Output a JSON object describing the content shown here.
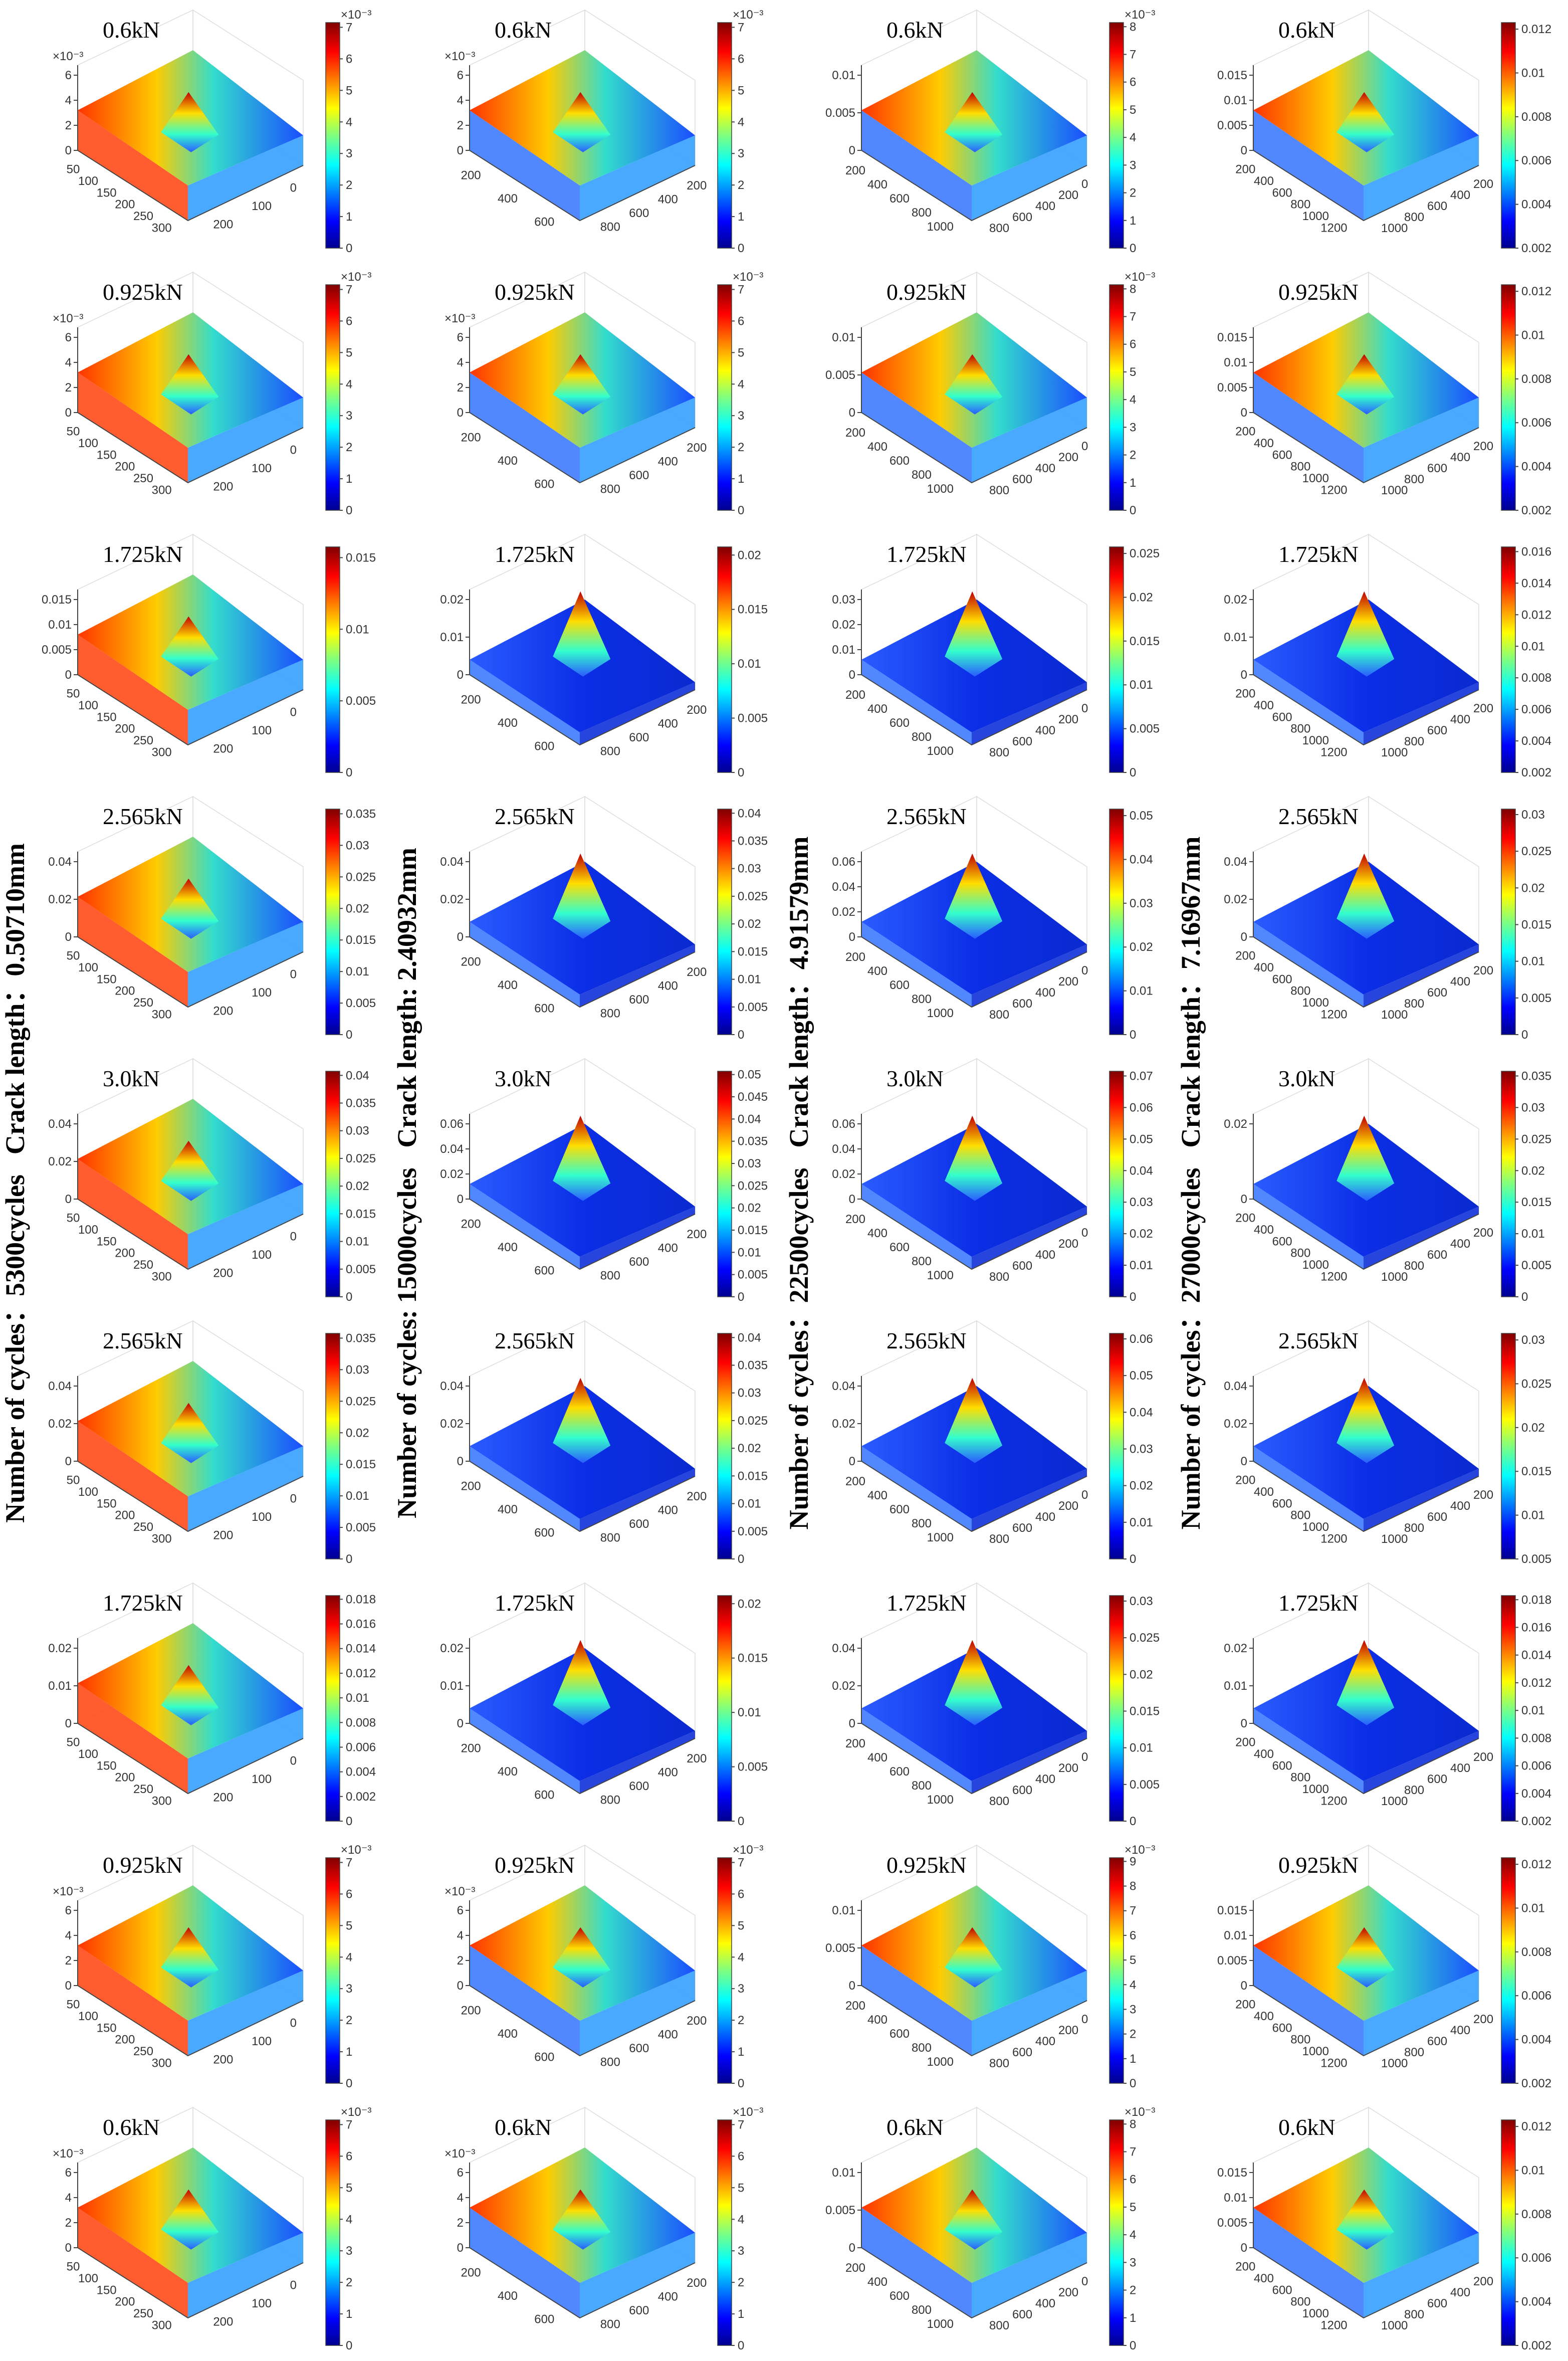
{
  "columns": [
    {
      "cycles": "Number of cycles：5300cycles",
      "crack": "Crack length：0.50710mm",
      "x_ticks": [
        "50",
        "100",
        "150",
        "200",
        "250",
        "300"
      ],
      "y_ticks": [
        "0",
        "100",
        "200"
      ],
      "panels": [
        {
          "title": "0.6kN",
          "z_ticks": [
            "0",
            "2",
            "4",
            "6"
          ],
          "z_exp": "×10⁻³",
          "cbar_ticks": [
            "0",
            "1",
            "2",
            "3",
            "4",
            "5",
            "6",
            "7"
          ],
          "cbar_exp": "×10⁻³"
        },
        {
          "title": "0.925kN",
          "z_ticks": [
            "0",
            "2",
            "4",
            "6"
          ],
          "z_exp": "×10⁻³",
          "cbar_ticks": [
            "0",
            "1",
            "2",
            "3",
            "4",
            "5",
            "6",
            "7"
          ],
          "cbar_exp": "×10⁻³"
        },
        {
          "title": "1.725kN",
          "z_ticks": [
            "0",
            "0.005",
            "0.01",
            "0.015"
          ],
          "cbar_ticks": [
            "0",
            "0.005",
            "0.01",
            "0.015"
          ]
        },
        {
          "title": "2.565kN",
          "z_ticks": [
            "0",
            "0.02",
            "0.04"
          ],
          "cbar_ticks": [
            "0",
            "0.005",
            "0.01",
            "0.015",
            "0.02",
            "0.025",
            "0.03",
            "0.035"
          ]
        },
        {
          "title": "3.0kN",
          "z_ticks": [
            "0",
            "0.02",
            "0.04"
          ],
          "cbar_ticks": [
            "0",
            "0.005",
            "0.01",
            "0.015",
            "0.02",
            "0.025",
            "0.03",
            "0.035",
            "0.04"
          ]
        },
        {
          "title": "2.565kN",
          "z_ticks": [
            "0",
            "0.02",
            "0.04"
          ],
          "cbar_ticks": [
            "0",
            "0.005",
            "0.01",
            "0.015",
            "0.02",
            "0.025",
            "0.03",
            "0.035"
          ]
        },
        {
          "title": "1.725kN",
          "z_ticks": [
            "0",
            "0.01",
            "0.02"
          ],
          "cbar_ticks": [
            "0",
            "0.002",
            "0.004",
            "0.006",
            "0.008",
            "0.01",
            "0.012",
            "0.014",
            "0.016",
            "0.018"
          ]
        },
        {
          "title": "0.925kN",
          "z_ticks": [
            "0",
            "2",
            "4",
            "6"
          ],
          "z_exp": "×10⁻³",
          "cbar_ticks": [
            "0",
            "1",
            "2",
            "3",
            "4",
            "5",
            "6",
            "7"
          ],
          "cbar_exp": "×10⁻³"
        },
        {
          "title": "0.6kN",
          "z_ticks": [
            "0",
            "2",
            "4",
            "6"
          ],
          "z_exp": "×10⁻³",
          "cbar_ticks": [
            "0",
            "1",
            "2",
            "3",
            "4",
            "5",
            "6",
            "7"
          ],
          "cbar_exp": "×10⁻³"
        }
      ]
    },
    {
      "cycles": "Number of cycles: 15000cycles",
      "crack": "Crack length: 2.40932mm",
      "x_ticks": [
        "200",
        "400",
        "600"
      ],
      "y_ticks": [
        "200",
        "400",
        "600",
        "800"
      ],
      "panels": [
        {
          "title": "0.6kN",
          "z_ticks": [
            "0",
            "2",
            "4",
            "6"
          ],
          "z_exp": "×10⁻³",
          "cbar_ticks": [
            "0",
            "1",
            "2",
            "3",
            "4",
            "5",
            "6",
            "7"
          ],
          "cbar_exp": "×10⁻³"
        },
        {
          "title": "0.925kN",
          "z_ticks": [
            "0",
            "2",
            "4",
            "6"
          ],
          "z_exp": "×10⁻³",
          "cbar_ticks": [
            "0",
            "1",
            "2",
            "3",
            "4",
            "5",
            "6",
            "7"
          ],
          "cbar_exp": "×10⁻³"
        },
        {
          "title": "1.725kN",
          "z_ticks": [
            "0",
            "0.01",
            "0.02"
          ],
          "cbar_ticks": [
            "0",
            "0.005",
            "0.01",
            "0.015",
            "0.02"
          ]
        },
        {
          "title": "2.565kN",
          "z_ticks": [
            "0",
            "0.02",
            "0.04"
          ],
          "cbar_ticks": [
            "0",
            "0.005",
            "0.01",
            "0.015",
            "0.02",
            "0.025",
            "0.03",
            "0.035",
            "0.04"
          ]
        },
        {
          "title": "3.0kN",
          "z_ticks": [
            "0",
            "0.02",
            "0.04",
            "0.06"
          ],
          "cbar_ticks": [
            "0",
            "0.005",
            "0.01",
            "0.015",
            "0.02",
            "0.025",
            "0.03",
            "0.035",
            "0.04",
            "0.045",
            "0.05"
          ]
        },
        {
          "title": "2.565kN",
          "z_ticks": [
            "0",
            "0.02",
            "0.04"
          ],
          "cbar_ticks": [
            "0",
            "0.005",
            "0.01",
            "0.015",
            "0.02",
            "0.025",
            "0.03",
            "0.035",
            "0.04"
          ]
        },
        {
          "title": "1.725kN",
          "z_ticks": [
            "0",
            "0.01",
            "0.02"
          ],
          "cbar_ticks": [
            "0",
            "0.005",
            "0.01",
            "0.015",
            "0.02"
          ]
        },
        {
          "title": "0.925kN",
          "z_ticks": [
            "0",
            "2",
            "4",
            "6"
          ],
          "z_exp": "×10⁻³",
          "cbar_ticks": [
            "0",
            "1",
            "2",
            "3",
            "4",
            "5",
            "6",
            "7"
          ],
          "cbar_exp": "×10⁻³"
        },
        {
          "title": "0.6kN",
          "z_ticks": [
            "0",
            "2",
            "4",
            "6"
          ],
          "z_exp": "×10⁻³",
          "cbar_ticks": [
            "0",
            "1",
            "2",
            "3",
            "4",
            "5",
            "6",
            "7"
          ],
          "cbar_exp": "×10⁻³"
        }
      ]
    },
    {
      "cycles": "Number of cycles：22500cycles",
      "crack": "Crack length：4.91579mm",
      "x_ticks": [
        "200",
        "400",
        "600",
        "800",
        "1000"
      ],
      "y_ticks": [
        "0",
        "200",
        "400",
        "600",
        "800"
      ],
      "panels": [
        {
          "title": "0.6kN",
          "z_ticks": [
            "0",
            "0.005",
            "0.01"
          ],
          "cbar_ticks": [
            "0",
            "1",
            "2",
            "3",
            "4",
            "5",
            "6",
            "7",
            "8"
          ],
          "cbar_exp": "×10⁻³"
        },
        {
          "title": "0.925kN",
          "z_ticks": [
            "0",
            "0.005",
            "0.01"
          ],
          "cbar_ticks": [
            "0",
            "1",
            "2",
            "3",
            "4",
            "5",
            "6",
            "7",
            "8"
          ],
          "cbar_exp": "×10⁻³"
        },
        {
          "title": "1.725kN",
          "z_ticks": [
            "0",
            "0.01",
            "0.02",
            "0.03"
          ],
          "cbar_ticks": [
            "0",
            "0.005",
            "0.01",
            "0.015",
            "0.02",
            "0.025"
          ]
        },
        {
          "title": "2.565kN",
          "z_ticks": [
            "0",
            "0.02",
            "0.04",
            "0.06"
          ],
          "cbar_ticks": [
            "0",
            "0.01",
            "0.02",
            "0.03",
            "0.04",
            "0.05"
          ]
        },
        {
          "title": "3.0kN",
          "z_ticks": [
            "0",
            "0.02",
            "0.04",
            "0.06"
          ],
          "cbar_ticks": [
            "0",
            "0.01",
            "0.02",
            "0.03",
            "0.04",
            "0.05",
            "0.06",
            "0.07"
          ]
        },
        {
          "title": "2.565kN",
          "z_ticks": [
            "0",
            "0.02",
            "0.04"
          ],
          "cbar_ticks": [
            "0",
            "0.01",
            "0.02",
            "0.03",
            "0.04",
            "0.05",
            "0.06"
          ]
        },
        {
          "title": "1.725kN",
          "z_ticks": [
            "0",
            "0.02",
            "0.04"
          ],
          "cbar_ticks": [
            "0",
            "0.005",
            "0.01",
            "0.015",
            "0.02",
            "0.025",
            "0.03"
          ]
        },
        {
          "title": "0.925kN",
          "z_ticks": [
            "0",
            "0.005",
            "0.01"
          ],
          "cbar_ticks": [
            "0",
            "1",
            "2",
            "3",
            "4",
            "5",
            "6",
            "7",
            "8",
            "9"
          ],
          "cbar_exp": "×10⁻³"
        },
        {
          "title": "0.6kN",
          "z_ticks": [
            "0",
            "0.005",
            "0.01"
          ],
          "cbar_ticks": [
            "0",
            "1",
            "2",
            "3",
            "4",
            "5",
            "6",
            "7",
            "8"
          ],
          "cbar_exp": "×10⁻³"
        }
      ]
    },
    {
      "cycles": "Number of cycles：27000cycles",
      "crack": "Crack length：7.16967mm",
      "x_ticks": [
        "200",
        "400",
        "600",
        "800",
        "1000",
        "1200"
      ],
      "y_ticks": [
        "200",
        "400",
        "600",
        "800",
        "1000"
      ],
      "panels": [
        {
          "title": "0.6kN",
          "z_ticks": [
            "0",
            "0.005",
            "0.01",
            "0.015"
          ],
          "cbar_ticks": [
            "0.002",
            "0.004",
            "0.006",
            "0.008",
            "0.01",
            "0.012"
          ]
        },
        {
          "title": "0.925kN",
          "z_ticks": [
            "0",
            "0.005",
            "0.01",
            "0.015"
          ],
          "cbar_ticks": [
            "0.002",
            "0.004",
            "0.006",
            "0.008",
            "0.01",
            "0.012"
          ]
        },
        {
          "title": "1.725kN",
          "z_ticks": [
            "0",
            "0.01",
            "0.02"
          ],
          "cbar_ticks": [
            "0.002",
            "0.004",
            "0.006",
            "0.008",
            "0.01",
            "0.012",
            "0.014",
            "0.016"
          ]
        },
        {
          "title": "2.565kN",
          "z_ticks": [
            "0",
            "0.02",
            "0.04"
          ],
          "cbar_ticks": [
            "0",
            "0.005",
            "0.01",
            "0.015",
            "0.02",
            "0.025",
            "0.03"
          ]
        },
        {
          "title": "3.0kN",
          "z_ticks": [
            "0",
            "0.02"
          ],
          "cbar_ticks": [
            "0",
            "0.005",
            "0.01",
            "0.015",
            "0.02",
            "0.025",
            "0.03",
            "0.035"
          ]
        },
        {
          "title": "2.565kN",
          "z_ticks": [
            "0",
            "0.02",
            "0.04"
          ],
          "cbar_ticks": [
            "0.005",
            "0.01",
            "0.015",
            "0.02",
            "0.025",
            "0.03"
          ]
        },
        {
          "title": "1.725kN",
          "z_ticks": [
            "0",
            "0.01",
            "0.02"
          ],
          "cbar_ticks": [
            "0.002",
            "0.004",
            "0.006",
            "0.008",
            "0.01",
            "0.012",
            "0.014",
            "0.016",
            "0.018"
          ]
        },
        {
          "title": "0.925kN",
          "z_ticks": [
            "0",
            "0.005",
            "0.01",
            "0.015"
          ],
          "cbar_ticks": [
            "0.002",
            "0.004",
            "0.006",
            "0.008",
            "0.01",
            "0.012"
          ]
        },
        {
          "title": "0.6kN",
          "z_ticks": [
            "0",
            "0.005",
            "0.01",
            "0.015"
          ],
          "cbar_ticks": [
            "0.002",
            "0.004",
            "0.006",
            "0.008",
            "0.01",
            "0.012"
          ]
        }
      ]
    }
  ]
}
